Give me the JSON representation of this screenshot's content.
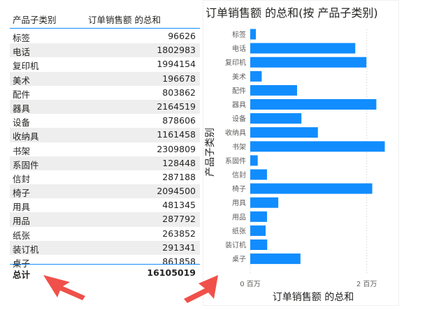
{
  "table": {
    "header_category": "产品子类别",
    "header_value": "订单销售额 的总和",
    "rows": [
      {
        "category": "标签",
        "value": "96626"
      },
      {
        "category": "电话",
        "value": "1802983"
      },
      {
        "category": "复印机",
        "value": "1994154"
      },
      {
        "category": "美术",
        "value": "196678"
      },
      {
        "category": "配件",
        "value": "803862"
      },
      {
        "category": "器具",
        "value": "2164519"
      },
      {
        "category": "设备",
        "value": "878606"
      },
      {
        "category": "收纳具",
        "value": "1161458"
      },
      {
        "category": "书架",
        "value": "2309809"
      },
      {
        "category": "系固件",
        "value": "128448"
      },
      {
        "category": "信封",
        "value": "287188"
      },
      {
        "category": "椅子",
        "value": "2094500"
      },
      {
        "category": "用具",
        "value": "481345"
      },
      {
        "category": "用品",
        "value": "287792"
      },
      {
        "category": "纸张",
        "value": "263852"
      },
      {
        "category": "装订机",
        "value": "291341"
      },
      {
        "category": "桌子",
        "value": "861858"
      }
    ],
    "total_label": "总计",
    "total_value": "16105019"
  },
  "chart_data": {
    "type": "bar",
    "orientation": "horizontal",
    "title": "订单销售额 的总和(按 产品子类别)",
    "xlabel": "订单销售额 的总和",
    "ylabel": "产品子类别",
    "categories": [
      "标签",
      "电话",
      "复印机",
      "美术",
      "配件",
      "器具",
      "设备",
      "收纳具",
      "书架",
      "系固件",
      "信封",
      "椅子",
      "用具",
      "用品",
      "纸张",
      "装订机",
      "桌子"
    ],
    "values": [
      96626,
      1802983,
      1994154,
      196678,
      803862,
      2164519,
      878606,
      1161458,
      2309809,
      128448,
      287188,
      2094500,
      481345,
      287792,
      263852,
      291341,
      861858
    ],
    "x_ticks": [
      {
        "value": 0,
        "label": "0 百万"
      },
      {
        "value": 2000000,
        "label": "2 百万"
      }
    ],
    "xlim": [
      0,
      2400000
    ],
    "grid": "vertical-dashed",
    "bar_color": "#118dff"
  },
  "colors": {
    "accent": "#118dff",
    "arrow": "#f0504a",
    "alt_row": "#eeeeee"
  }
}
